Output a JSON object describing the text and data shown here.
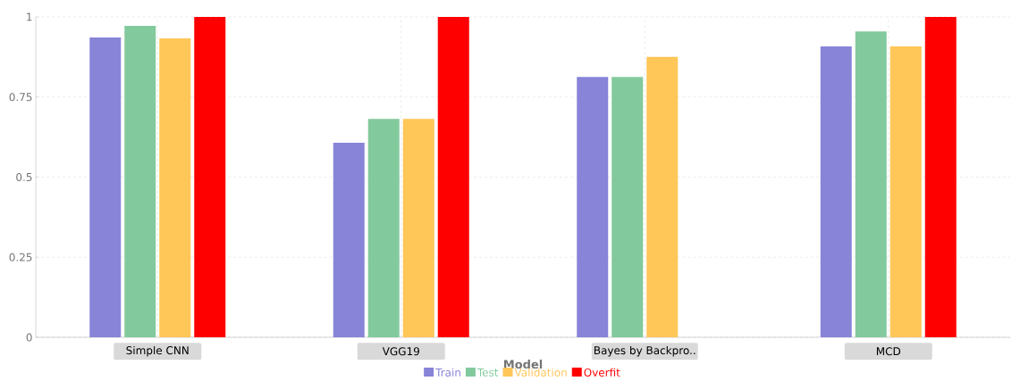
{
  "chart_data": {
    "type": "bar",
    "xlabel": "Model",
    "categories": [
      "Simple CNN",
      "VGG19",
      "Bayes by Backpro..",
      "MCD"
    ],
    "series": [
      {
        "name": "Train",
        "color": "#8884d8",
        "values": [
          0.936,
          0.607,
          0.813,
          0.908
        ]
      },
      {
        "name": "Test",
        "color": "#82ca9d",
        "values": [
          0.972,
          0.682,
          0.813,
          0.955
        ]
      },
      {
        "name": "Validation",
        "color": "#ffc658",
        "values": [
          0.933,
          0.682,
          0.875,
          0.908
        ]
      },
      {
        "name": "Overfit",
        "color": "#ff0000",
        "values": [
          1,
          1,
          null,
          1
        ]
      }
    ],
    "ylim": [
      0,
      1
    ],
    "yticks": [
      0,
      0.25,
      0.5,
      0.75,
      1
    ],
    "grid": true,
    "legend": "bottom"
  }
}
